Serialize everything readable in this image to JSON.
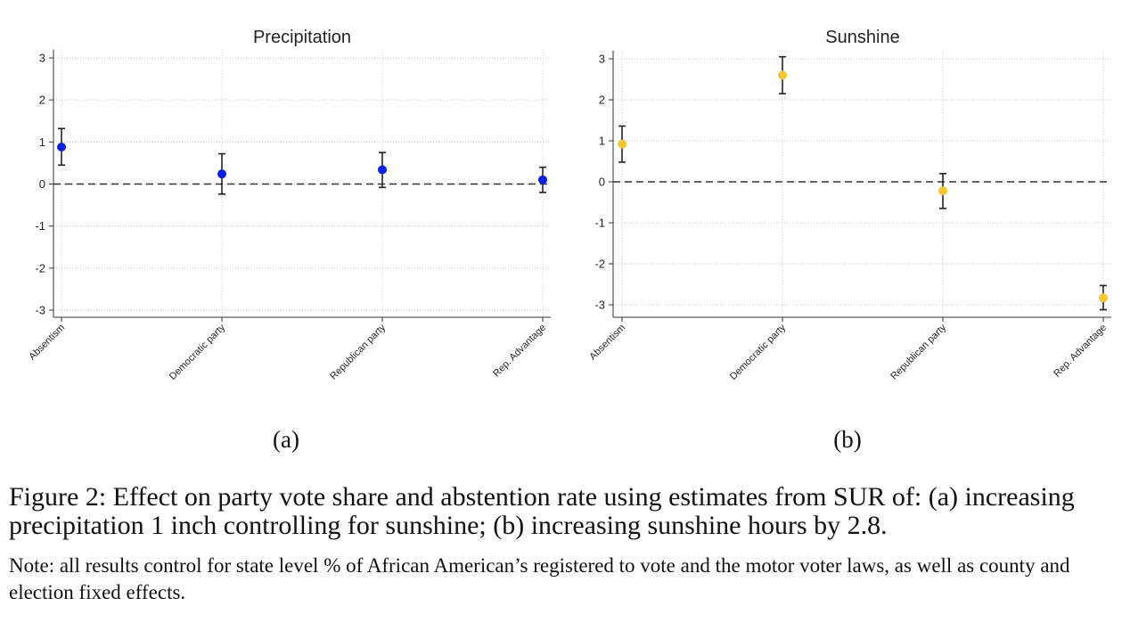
{
  "chart_data": [
    {
      "type": "scatter",
      "title": "Precipitation",
      "categories": [
        "Absentism",
        "Democratic party",
        "Republican party",
        "Rep. Advantage"
      ],
      "series": [
        {
          "values": [
            0.88,
            0.24,
            0.34,
            0.1
          ],
          "ci_low": [
            0.45,
            -0.24,
            -0.08,
            -0.2
          ],
          "ci_high": [
            1.32,
            0.72,
            0.75,
            0.4
          ],
          "color": "#0b1fe6"
        }
      ],
      "yticks": [
        3,
        2,
        1,
        0,
        -1,
        -2,
        -3
      ],
      "ylim": [
        -3.2,
        3.2
      ],
      "reference_line": 0,
      "grid": true
    },
    {
      "type": "scatter",
      "title": "Sunshine",
      "categories": [
        "Absentism",
        "Democratic party",
        "Republican party",
        "Rep. Advantage"
      ],
      "series": [
        {
          "values": [
            0.92,
            2.6,
            -0.22,
            -2.83
          ],
          "ci_low": [
            0.48,
            2.15,
            -0.65,
            -3.12
          ],
          "ci_high": [
            1.36,
            3.05,
            0.2,
            -2.53
          ],
          "color": "#f5c631"
        }
      ],
      "yticks": [
        3,
        2,
        1,
        0,
        -1,
        -2,
        -3
      ],
      "ylim": [
        -3.2,
        3.2
      ],
      "reference_line": 0,
      "grid": true
    }
  ],
  "panels": {
    "a": "(a)",
    "b": "(b)"
  },
  "caption": "Figure 2: Effect on party vote share and abstention rate using estimates from SUR of: (a) increasing precipitation 1 inch controlling for sunshine; (b) increasing sunshine hours by 2.8.",
  "note": "Note: all results control for state level % of African American’s registered to vote and the motor voter laws, as well as county and election fixed effects."
}
